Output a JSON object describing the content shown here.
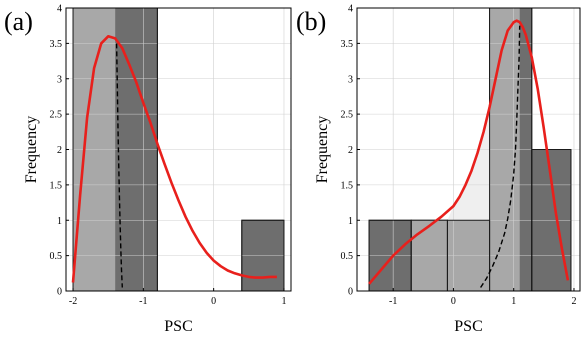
{
  "chart_data": [
    {
      "type": "bar",
      "panel_label": "(a)",
      "xlabel": "PSC",
      "ylabel": "Frequency",
      "xlim": [
        -2.1,
        1.1
      ],
      "ylim": [
        0,
        4
      ],
      "xticks": [
        -2,
        -1,
        0,
        1
      ],
      "yticks": [
        0,
        0.5,
        1,
        1.5,
        2,
        2.5,
        3,
        3.5,
        4
      ],
      "grid": true,
      "bins": [
        {
          "x0": -2.0,
          "x1": -0.8,
          "value": 4
        },
        {
          "x0": -0.8,
          "x1": 0.4,
          "value": 0
        },
        {
          "x0": 0.4,
          "x1": 1.0,
          "value": 1
        }
      ],
      "shaded_region": {
        "x0": -2.0,
        "x1": -1.4
      },
      "fit_curve": {
        "color": "#e8201c",
        "x": [
          -2.0,
          -1.9,
          -1.8,
          -1.7,
          -1.6,
          -1.5,
          -1.4,
          -1.3,
          -1.2,
          -1.1,
          -1.0,
          -0.9,
          -0.8,
          -0.7,
          -0.6,
          -0.5,
          -0.4,
          -0.3,
          -0.2,
          -0.1,
          0.0,
          0.1,
          0.2,
          0.3,
          0.4,
          0.5,
          0.6,
          0.7,
          0.8,
          0.9
        ],
        "y": [
          0.12,
          1.35,
          2.45,
          3.15,
          3.5,
          3.6,
          3.57,
          3.43,
          3.2,
          2.95,
          2.66,
          2.38,
          2.08,
          1.8,
          1.53,
          1.28,
          1.05,
          0.85,
          0.68,
          0.54,
          0.43,
          0.35,
          0.29,
          0.25,
          0.22,
          0.2,
          0.19,
          0.19,
          0.2,
          0.2
        ]
      },
      "dashed_curve": {
        "x": [
          -1.38,
          -1.37,
          -1.36,
          -1.35,
          -1.34,
          -1.33,
          -1.32,
          -1.31,
          -1.3
        ],
        "y": [
          3.5,
          2.9,
          2.3,
          1.8,
          1.35,
          0.95,
          0.6,
          0.3,
          0.05
        ]
      },
      "colors": {
        "bar": "#6e6e6e",
        "shade": "#a8a8a8",
        "edge": "#1a1a1a"
      }
    },
    {
      "type": "bar",
      "panel_label": "(b)",
      "xlabel": "PSC",
      "ylabel": "Frequency",
      "xlim": [
        -1.6,
        2.1
      ],
      "ylim": [
        0,
        4
      ],
      "xticks": [
        -1,
        0,
        1,
        2
      ],
      "yticks": [
        0,
        0.5,
        1,
        1.5,
        2,
        2.5,
        3,
        3.5,
        4
      ],
      "grid": true,
      "bins": [
        {
          "x0": -1.4,
          "x1": -0.7,
          "value": 1
        },
        {
          "x0": -0.7,
          "x1": -0.1,
          "value": 1
        },
        {
          "x0": -0.1,
          "x1": 0.6,
          "value": 1
        },
        {
          "x0": 0.6,
          "x1": 1.3,
          "value": 4
        },
        {
          "x0": 1.3,
          "x1": 1.95,
          "value": 2
        }
      ],
      "shaded_region": {
        "x0": -0.7,
        "x1": 1.1
      },
      "fit_curve": {
        "color": "#e8201c",
        "x": [
          -1.4,
          -1.2,
          -1.0,
          -0.8,
          -0.6,
          -0.4,
          -0.2,
          0.0,
          0.1,
          0.2,
          0.3,
          0.4,
          0.5,
          0.6,
          0.7,
          0.8,
          0.9,
          1.0,
          1.05,
          1.1,
          1.15,
          1.2,
          1.3,
          1.4,
          1.5,
          1.6,
          1.7,
          1.8,
          1.9
        ],
        "y": [
          0.1,
          0.3,
          0.5,
          0.66,
          0.8,
          0.92,
          1.05,
          1.2,
          1.33,
          1.5,
          1.7,
          1.95,
          2.25,
          2.6,
          3.0,
          3.4,
          3.68,
          3.8,
          3.82,
          3.8,
          3.73,
          3.62,
          3.3,
          2.85,
          2.3,
          1.7,
          1.1,
          0.6,
          0.15
        ]
      },
      "dashed_curve": {
        "x": [
          0.45,
          0.55,
          0.65,
          0.75,
          0.85,
          0.9,
          0.95,
          1.0,
          1.03,
          1.05,
          1.07,
          1.09,
          1.1
        ],
        "y": [
          0.05,
          0.18,
          0.35,
          0.55,
          0.82,
          1.02,
          1.28,
          1.65,
          2.0,
          2.4,
          2.85,
          3.3,
          3.75
        ]
      },
      "colors": {
        "bar": "#6e6e6e",
        "shade": "#a8a8a8",
        "light_shade": "#efefef",
        "edge": "#1a1a1a"
      }
    }
  ]
}
